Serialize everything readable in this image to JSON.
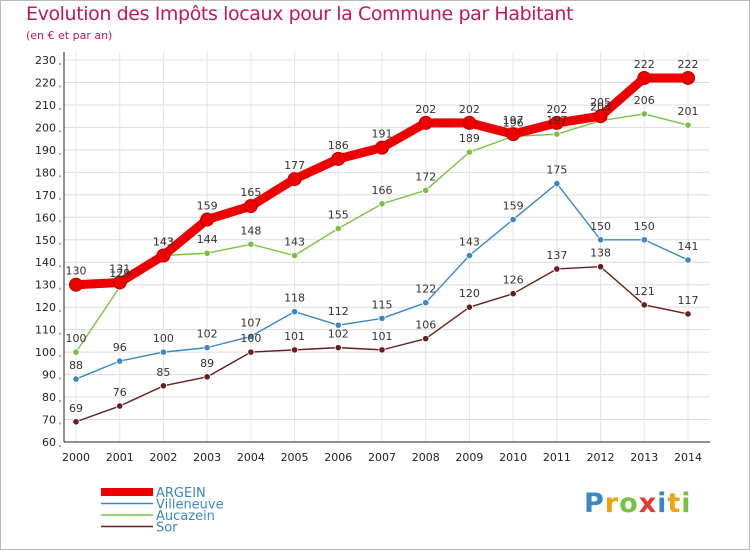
{
  "header": {
    "title": "Evolution des Impôts locaux pour la Commune par Habitant",
    "subtitle": "(en € et par an)"
  },
  "brand": {
    "text": "Proxiti",
    "colors": [
      "#3a87c8",
      "#f0a30a",
      "#7ac143",
      "#e53935",
      "#3a87c8",
      "#f0a30a",
      "#7ac143"
    ]
  },
  "chart_data": {
    "type": "line",
    "title": "Evolution des Impôts locaux pour la Commune par Habitant",
    "subtitle": "(en € et par an)",
    "xlabel": "",
    "ylabel": "",
    "x": [
      "2000",
      "2001",
      "2002",
      "2003",
      "2004",
      "2005",
      "2006",
      "2007",
      "2008",
      "2009",
      "2010",
      "2011",
      "2012",
      "2013",
      "2014"
    ],
    "ylim": [
      60,
      230
    ],
    "yticks": [
      60,
      70,
      80,
      90,
      100,
      110,
      120,
      130,
      140,
      150,
      160,
      170,
      180,
      190,
      200,
      210,
      220,
      230
    ],
    "grid": true,
    "legend_position": "bottom-left",
    "series": [
      {
        "name": "ARGEIN",
        "color": "#ee0000",
        "emphasis": true,
        "values": [
          130,
          131,
          143,
          159,
          165,
          177,
          186,
          191,
          202,
          202,
          197,
          202,
          205,
          222,
          222
        ]
      },
      {
        "name": "Villeneuve",
        "color": "#3a87c8",
        "values": [
          88,
          96,
          100,
          102,
          107,
          118,
          112,
          115,
          122,
          143,
          159,
          175,
          150,
          150,
          141
        ]
      },
      {
        "name": "Aucazein",
        "color": "#7ac143",
        "values": [
          100,
          129,
          143,
          144,
          148,
          143,
          155,
          166,
          172,
          189,
          196,
          197,
          203,
          206,
          201
        ]
      },
      {
        "name": "Sor",
        "color": "#6b1c1c",
        "values": [
          69,
          76,
          85,
          89,
          100,
          101,
          102,
          101,
          106,
          120,
          126,
          137,
          138,
          121,
          117
        ]
      }
    ]
  }
}
